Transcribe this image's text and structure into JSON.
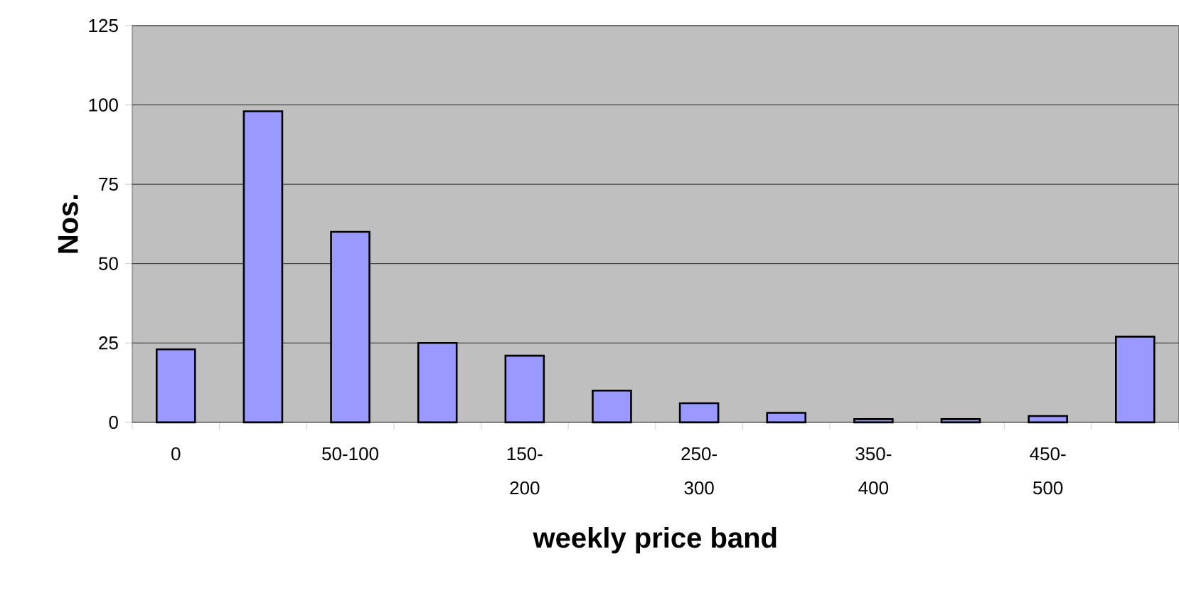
{
  "chart_data": {
    "type": "bar",
    "xlabel": "weekly price band",
    "ylabel": "Nos.",
    "categories": [
      "0",
      null,
      "50-100",
      null,
      "150-200",
      null,
      "250-300",
      null,
      "350-400",
      null,
      "450-500",
      null
    ],
    "values": [
      23,
      98,
      60,
      25,
      21,
      10,
      6,
      3,
      1,
      1,
      2,
      27
    ],
    "color": "#9999ff",
    "ylim": [
      0,
      125
    ],
    "yticks": [
      0,
      25,
      50,
      75,
      100,
      125
    ],
    "grid": "y"
  }
}
